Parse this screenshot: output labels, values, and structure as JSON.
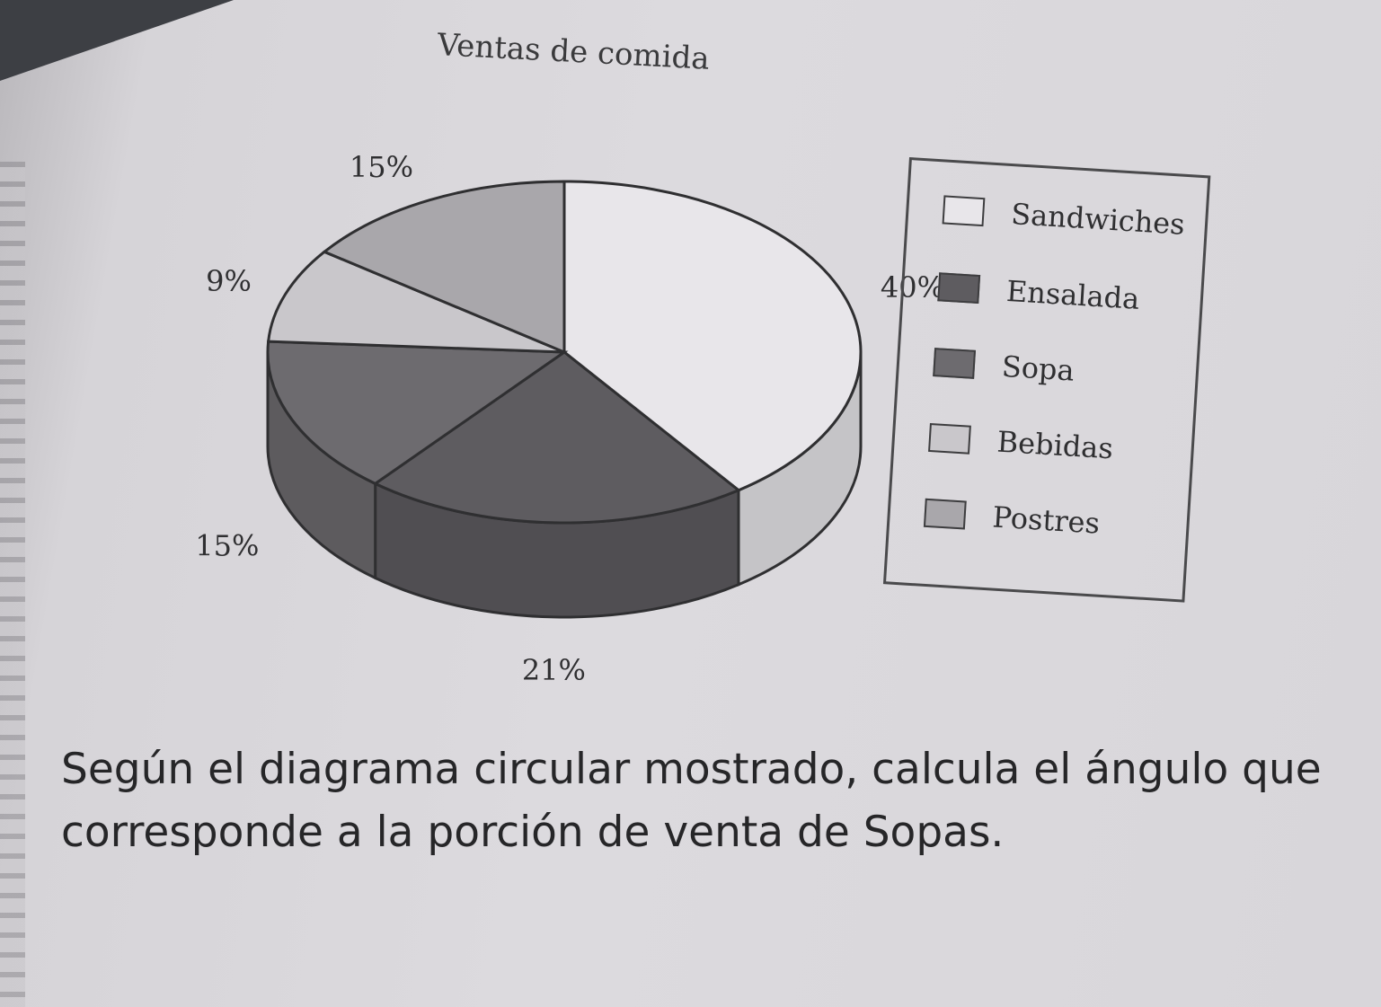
{
  "chart_data": {
    "type": "pie",
    "title": "Ventas de comida",
    "slices": [
      {
        "label": "Sandwiches",
        "value": 40,
        "display": "40%",
        "color": "#e8e6ea"
      },
      {
        "label": "Ensalada",
        "value": 21,
        "display": "21%",
        "color": "#5e5c60"
      },
      {
        "label": "Sopa",
        "value": 15,
        "display": "15%",
        "color": "#6d6b6f"
      },
      {
        "label": "Bebidas",
        "value": 9,
        "display": "9%",
        "color": "#c9c7cb"
      },
      {
        "label": "Postres",
        "value": 15,
        "display": "15%",
        "color": "#a9a7ab"
      }
    ],
    "legend": [
      "Sandwiches",
      "Ensalada",
      "Sopa",
      "Bebidas",
      "Postres"
    ],
    "legend_position": "right"
  },
  "question": {
    "text": "Según el diagrama circular mostrado, calcula el ángulo que corresponde a la porción de venta de Sopas."
  }
}
